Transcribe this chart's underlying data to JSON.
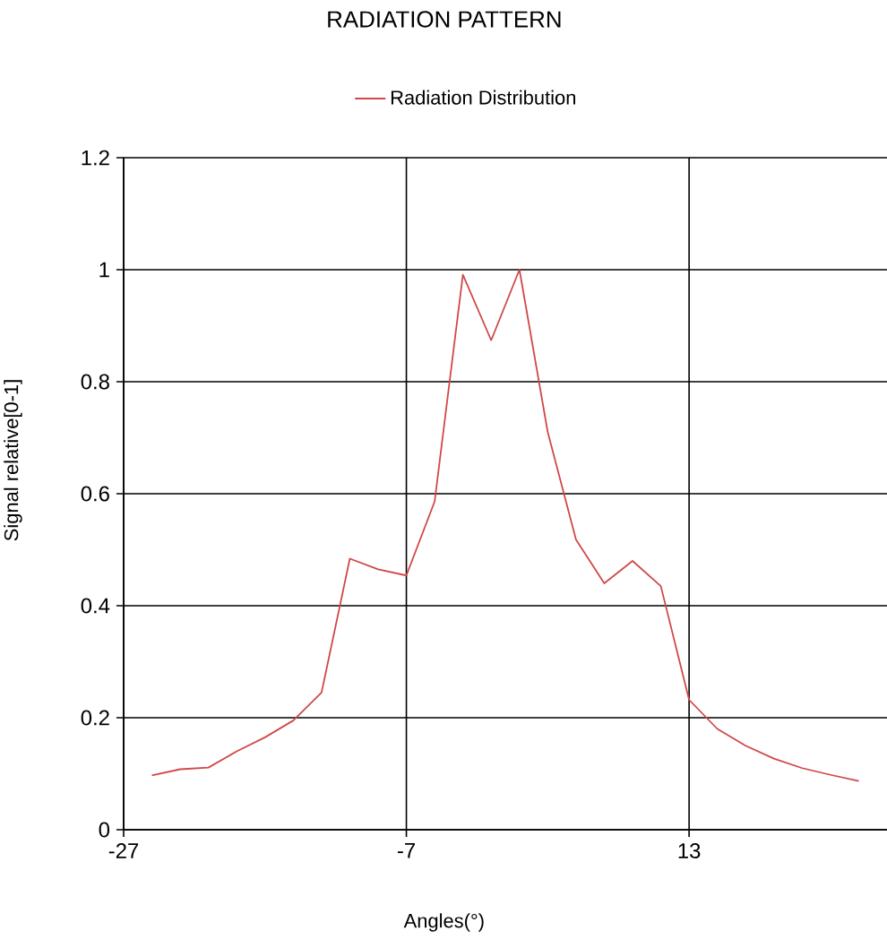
{
  "chart_data": {
    "type": "line",
    "title": "RADIATION PATTERN",
    "xlabel": "Angles(°)",
    "ylabel": "Signal relative[0-1]",
    "x": [
      -25,
      -23,
      -21,
      -19,
      -17,
      -15,
      -13,
      -11,
      -9,
      -7,
      -5,
      -3,
      -1,
      1,
      3,
      5,
      7,
      9,
      11,
      13,
      15,
      17,
      19,
      21,
      23,
      25
    ],
    "series": [
      {
        "name": "Radiation Distribution",
        "color": "#d04848",
        "values": [
          0.097,
          0.108,
          0.111,
          0.14,
          0.165,
          0.195,
          0.245,
          0.484,
          0.465,
          0.454,
          0.586,
          0.991,
          0.874,
          1.0,
          0.71,
          0.518,
          0.44,
          0.48,
          0.435,
          0.232,
          0.18,
          0.15,
          0.127,
          0.11,
          0.098,
          0.087
        ]
      }
    ],
    "xlim": [
      -27,
      27
    ],
    "ylim": [
      0,
      1.2
    ],
    "xticks": [
      -27,
      -7,
      13
    ],
    "yticks": [
      0,
      0.2,
      0.4,
      0.6,
      0.8,
      1,
      1.2
    ],
    "grid": true,
    "legend": "top"
  }
}
